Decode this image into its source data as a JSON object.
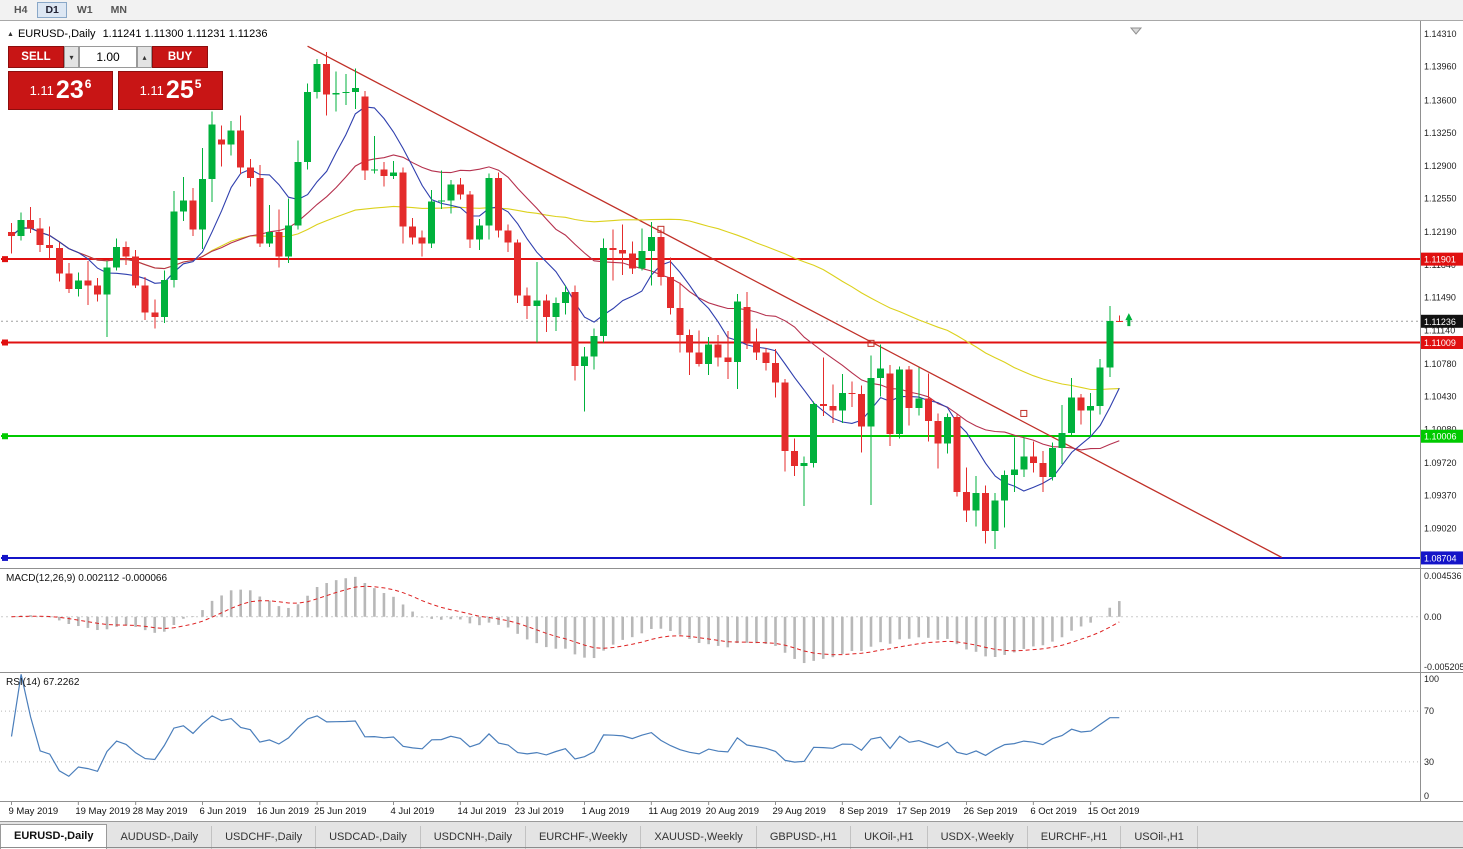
{
  "toolbar": {
    "timeframes": [
      {
        "label": "H4",
        "active": false
      },
      {
        "label": "D1",
        "active": true
      },
      {
        "label": "W1",
        "active": false
      },
      {
        "label": "MN",
        "active": false
      }
    ]
  },
  "chart_header": {
    "collapse_icon": "▲",
    "symbol_title": "EURUSD-,Daily",
    "ohlc": "1.11241 1.11300 1.11231 1.11236"
  },
  "trade_panel": {
    "sell_label": "SELL",
    "buy_label": "BUY",
    "lot_value": "1.00",
    "spin_up_icon": "▴",
    "spin_down_icon": "▾",
    "sell_price": {
      "big": "1.11",
      "pips": "23",
      "pipette": "6"
    },
    "buy_price": {
      "big": "1.11",
      "pips": "25",
      "pipette": "5"
    }
  },
  "colors": {
    "bull": "#00b13c",
    "bear": "#e42c2c",
    "ma_fast": "#2f3fae",
    "ma_mid": "#b5314e",
    "ma_slow": "#dcd11c",
    "trendline": "#c03028",
    "hline_red": "#e01010",
    "hline_green": "#00ca00",
    "hline_blue": "#1414c8",
    "current_line": "#a0a0a0",
    "current_badge": "#111111",
    "macd_hist": "#b8b8b8",
    "macd_signal": "#dd2222",
    "rsi_line": "#4a7ebb",
    "axis_text": "#222222"
  },
  "chart_data": {
    "type": "candlestick",
    "symbol": "EURUSD-",
    "timeframe": "Daily",
    "current_price": 1.11236,
    "y_ticks": [
      1.1431,
      1.1396,
      1.136,
      1.1325,
      1.129,
      1.1255,
      1.1219,
      1.1184,
      1.1149,
      1.1114,
      1.1078,
      1.1043,
      1.1008,
      1.0972,
      1.0937,
      1.0902
    ],
    "x_ticks": [
      {
        "label": "9 May 2019",
        "index": 0
      },
      {
        "label": "19 May 2019",
        "index": 7
      },
      {
        "label": "28 May 2019",
        "index": 13
      },
      {
        "label": "6 Jun 2019",
        "index": 20
      },
      {
        "label": "16 Jun 2019",
        "index": 26
      },
      {
        "label": "25 Jun 2019",
        "index": 32
      },
      {
        "label": "4 Jul 2019",
        "index": 40
      },
      {
        "label": "14 Jul 2019",
        "index": 47
      },
      {
        "label": "23 Jul 2019",
        "index": 53
      },
      {
        "label": "1 Aug 2019",
        "index": 60
      },
      {
        "label": "11 Aug 2019",
        "index": 67
      },
      {
        "label": "20 Aug 2019",
        "index": 73
      },
      {
        "label": "29 Aug 2019",
        "index": 80
      },
      {
        "label": "8 Sep 2019",
        "index": 87
      },
      {
        "label": "17 Sep 2019",
        "index": 93
      },
      {
        "label": "26 Sep 2019",
        "index": 100
      },
      {
        "label": "6 Oct 2019",
        "index": 107
      },
      {
        "label": "15 Oct 2019",
        "index": 113
      }
    ],
    "hlines": [
      {
        "price": 1.11901,
        "color": "#e01010"
      },
      {
        "price": 1.11009,
        "color": "#e01010"
      },
      {
        "price": 1.10006,
        "color": "#00ca00"
      },
      {
        "price": 1.08704,
        "color": "#1414c8"
      }
    ],
    "trendline": {
      "from_index": 31,
      "from_price": 1.1418,
      "to_index": 133,
      "to_price": 1.0871
    },
    "trendline_handles": [
      {
        "index": 68,
        "price": 1.1222
      },
      {
        "index": 90,
        "price": 1.11
      },
      {
        "index": 106,
        "price": 1.1025
      }
    ],
    "buy_arrow": {
      "index": 117,
      "price": 1.1128
    },
    "moving_averages": [
      {
        "period": 55,
        "color": "#dcd11c"
      },
      {
        "period": 21,
        "color": "#b5314e"
      },
      {
        "period": 8,
        "color": "#2f3fae"
      }
    ],
    "candles": [
      [
        1.1219,
        1.1229,
        1.1196,
        1.1215
      ],
      [
        1.1215,
        1.124,
        1.121,
        1.1232
      ],
      [
        1.1232,
        1.1246,
        1.1218,
        1.1223
      ],
      [
        1.1223,
        1.1234,
        1.1198,
        1.1205
      ],
      [
        1.1205,
        1.1225,
        1.1191,
        1.1202
      ],
      [
        1.1202,
        1.1208,
        1.1166,
        1.1175
      ],
      [
        1.1175,
        1.1186,
        1.1154,
        1.1158
      ],
      [
        1.1158,
        1.1176,
        1.115,
        1.1167
      ],
      [
        1.1167,
        1.1188,
        1.1141,
        1.1162
      ],
      [
        1.1162,
        1.117,
        1.1145,
        1.1152
      ],
      [
        1.1152,
        1.1188,
        1.1107,
        1.1181
      ],
      [
        1.1181,
        1.1212,
        1.1178,
        1.1203
      ],
      [
        1.1203,
        1.1209,
        1.1184,
        1.1193
      ],
      [
        1.1193,
        1.12,
        1.1159,
        1.1162
      ],
      [
        1.1162,
        1.1171,
        1.1125,
        1.1133
      ],
      [
        1.1133,
        1.1147,
        1.1116,
        1.1128
      ],
      [
        1.1128,
        1.1178,
        1.1122,
        1.1168
      ],
      [
        1.1168,
        1.1263,
        1.116,
        1.1241
      ],
      [
        1.1241,
        1.1278,
        1.1231,
        1.1253
      ],
      [
        1.1253,
        1.1266,
        1.1215,
        1.1222
      ],
      [
        1.1222,
        1.1309,
        1.1201,
        1.1276
      ],
      [
        1.1276,
        1.1348,
        1.1251,
        1.1334
      ],
      [
        1.1318,
        1.1333,
        1.1289,
        1.1313
      ],
      [
        1.1313,
        1.1338,
        1.1301,
        1.1328
      ],
      [
        1.1328,
        1.1344,
        1.1281,
        1.1288
      ],
      [
        1.1288,
        1.1297,
        1.1268,
        1.1277
      ],
      [
        1.1277,
        1.1291,
        1.1203,
        1.1207
      ],
      [
        1.1207,
        1.1248,
        1.1203,
        1.1219
      ],
      [
        1.1219,
        1.1243,
        1.1181,
        1.1193
      ],
      [
        1.1193,
        1.1255,
        1.1186,
        1.1226
      ],
      [
        1.1226,
        1.1317,
        1.1222,
        1.1294
      ],
      [
        1.1294,
        1.1378,
        1.1286,
        1.1369
      ],
      [
        1.1369,
        1.1404,
        1.1362,
        1.1399
      ],
      [
        1.1399,
        1.1412,
        1.1344,
        1.1366
      ],
      [
        1.1366,
        1.1391,
        1.1348,
        1.1368
      ],
      [
        1.1368,
        1.1388,
        1.1355,
        1.1369
      ],
      [
        1.1369,
        1.1394,
        1.1351,
        1.1373
      ],
      [
        1.1364,
        1.137,
        1.1275,
        1.1285
      ],
      [
        1.1285,
        1.1322,
        1.1282,
        1.1286
      ],
      [
        1.1286,
        1.1294,
        1.1268,
        1.1279
      ],
      [
        1.1279,
        1.1295,
        1.1276,
        1.1283
      ],
      [
        1.1283,
        1.1288,
        1.1207,
        1.1225
      ],
      [
        1.1225,
        1.1234,
        1.1206,
        1.1213
      ],
      [
        1.1213,
        1.1221,
        1.1193,
        1.1207
      ],
      [
        1.1207,
        1.1264,
        1.1202,
        1.1252
      ],
      [
        1.1252,
        1.1285,
        1.1244,
        1.1253
      ],
      [
        1.1253,
        1.1275,
        1.1239,
        1.127
      ],
      [
        1.127,
        1.1277,
        1.1254,
        1.1259
      ],
      [
        1.1259,
        1.1263,
        1.1202,
        1.1211
      ],
      [
        1.1211,
        1.1233,
        1.12,
        1.1226
      ],
      [
        1.1226,
        1.1282,
        1.1211,
        1.1277
      ],
      [
        1.1277,
        1.1283,
        1.1213,
        1.1221
      ],
      [
        1.1221,
        1.1227,
        1.1198,
        1.1208
      ],
      [
        1.1208,
        1.1211,
        1.1143,
        1.1151
      ],
      [
        1.1151,
        1.116,
        1.1126,
        1.114
      ],
      [
        1.114,
        1.1187,
        1.1101,
        1.1146
      ],
      [
        1.1146,
        1.1152,
        1.1112,
        1.1128
      ],
      [
        1.1128,
        1.1149,
        1.1113,
        1.1143
      ],
      [
        1.1143,
        1.1162,
        1.1131,
        1.1155
      ],
      [
        1.1155,
        1.1162,
        1.106,
        1.1076
      ],
      [
        1.1076,
        1.1096,
        1.1027,
        1.1086
      ],
      [
        1.1086,
        1.1116,
        1.1072,
        1.1108
      ],
      [
        1.1108,
        1.1212,
        1.1101,
        1.1202
      ],
      [
        1.1202,
        1.1222,
        1.1167,
        1.12
      ],
      [
        1.12,
        1.1227,
        1.1173,
        1.1196
      ],
      [
        1.1196,
        1.1209,
        1.1174,
        1.118
      ],
      [
        1.118,
        1.1223,
        1.1178,
        1.1199
      ],
      [
        1.1199,
        1.123,
        1.1162,
        1.1214
      ],
      [
        1.1214,
        1.1222,
        1.1162,
        1.1171
      ],
      [
        1.1171,
        1.1192,
        1.1131,
        1.1138
      ],
      [
        1.1138,
        1.1165,
        1.109,
        1.1109
      ],
      [
        1.1109,
        1.1115,
        1.1066,
        1.109
      ],
      [
        1.109,
        1.1114,
        1.1075,
        1.1078
      ],
      [
        1.1078,
        1.1107,
        1.1066,
        1.1099
      ],
      [
        1.1099,
        1.1109,
        1.1075,
        1.1085
      ],
      [
        1.1085,
        1.1113,
        1.1062,
        1.108
      ],
      [
        1.108,
        1.1153,
        1.1051,
        1.1145
      ],
      [
        1.1139,
        1.1155,
        1.1094,
        1.1101
      ],
      [
        1.1101,
        1.1116,
        1.1082,
        1.109
      ],
      [
        1.109,
        1.1095,
        1.1071,
        1.1079
      ],
      [
        1.1079,
        1.1094,
        1.1042,
        1.1058
      ],
      [
        1.1058,
        1.1062,
        1.0963,
        1.0985
      ],
      [
        1.0985,
        1.0998,
        1.0958,
        1.0969
      ],
      [
        1.0969,
        1.0979,
        1.0926,
        1.0972
      ],
      [
        1.0972,
        1.1038,
        1.0967,
        1.1035
      ],
      [
        1.1035,
        1.1085,
        1.1022,
        1.1033
      ],
      [
        1.1033,
        1.1056,
        1.1015,
        1.1028
      ],
      [
        1.1028,
        1.1067,
        1.1015,
        1.1047
      ],
      [
        1.1047,
        1.1059,
        1.1032,
        1.1046
      ],
      [
        1.1046,
        1.1055,
        1.0983,
        1.1011
      ],
      [
        1.1011,
        1.1087,
        1.0927,
        1.1063
      ],
      [
        1.1063,
        1.1099,
        1.1043,
        1.1073
      ],
      [
        1.1068,
        1.1077,
        1.099,
        1.1003
      ],
      [
        1.1003,
        1.1075,
        1.0998,
        1.1072
      ],
      [
        1.1072,
        1.1076,
        1.1012,
        1.1031
      ],
      [
        1.1031,
        1.1074,
        1.1023,
        1.1041
      ],
      [
        1.1041,
        1.1068,
        1.0995,
        1.1017
      ],
      [
        1.1017,
        1.1025,
        1.0966,
        1.0993
      ],
      [
        1.0993,
        1.1025,
        1.0982,
        1.1021
      ],
      [
        1.1021,
        1.1024,
        1.0936,
        1.0941
      ],
      [
        1.0941,
        1.0967,
        1.0909,
        1.0921
      ],
      [
        1.0921,
        1.0958,
        1.0904,
        1.094
      ],
      [
        1.094,
        1.0948,
        1.0886,
        1.0899
      ],
      [
        1.0899,
        1.094,
        1.088,
        1.0932
      ],
      [
        1.0932,
        1.0964,
        1.0903,
        1.0959
      ],
      [
        1.0959,
        1.0999,
        1.0941,
        1.0965
      ],
      [
        1.0965,
        1.0999,
        1.0957,
        1.0979
      ],
      [
        1.0979,
        1.0995,
        1.0962,
        1.0972
      ],
      [
        1.0972,
        1.0985,
        1.0941,
        1.0957
      ],
      [
        1.0957,
        1.0994,
        1.0953,
        1.0988
      ],
      [
        1.0988,
        1.1034,
        1.0971,
        1.1004
      ],
      [
        1.1004,
        1.1063,
        1.1002,
        1.1042
      ],
      [
        1.1042,
        1.1046,
        1.1013,
        1.1028
      ],
      [
        1.1028,
        1.1047,
        1.1001,
        1.1033
      ],
      [
        1.1033,
        1.1083,
        1.1024,
        1.1074
      ],
      [
        1.1074,
        1.114,
        1.1064,
        1.1124
      ],
      [
        1.11241,
        1.113,
        1.11231,
        1.11236
      ]
    ]
  },
  "macd": {
    "label": "MACD(12,26,9) 0.002112 -0.000066",
    "axis": [
      "0.004536",
      "0.00",
      "-0.005205"
    ],
    "params": {
      "fast": 12,
      "slow": 26,
      "signal": 9
    }
  },
  "rsi": {
    "label": "RSI(14) 67.2262",
    "axis": [
      "100",
      "70",
      "30",
      "0"
    ],
    "period": 14,
    "levels": [
      70,
      30
    ]
  },
  "tabs": [
    {
      "label": "EURUSD-,Daily",
      "active": true
    },
    {
      "label": "AUDUSD-,Daily",
      "active": false
    },
    {
      "label": "USDCHF-,Daily",
      "active": false
    },
    {
      "label": "USDCAD-,Daily",
      "active": false
    },
    {
      "label": "USDCNH-,Daily",
      "active": false
    },
    {
      "label": "EURCHF-,Weekly",
      "active": false
    },
    {
      "label": "XAUUSD-,Weekly",
      "active": false
    },
    {
      "label": "GBPUSD-,H1",
      "active": false
    },
    {
      "label": "UKOil-,H1",
      "active": false
    },
    {
      "label": "USDX-,Weekly",
      "active": false
    },
    {
      "label": "EURCHF-,H1",
      "active": false
    },
    {
      "label": "USOil-,H1",
      "active": false
    }
  ]
}
